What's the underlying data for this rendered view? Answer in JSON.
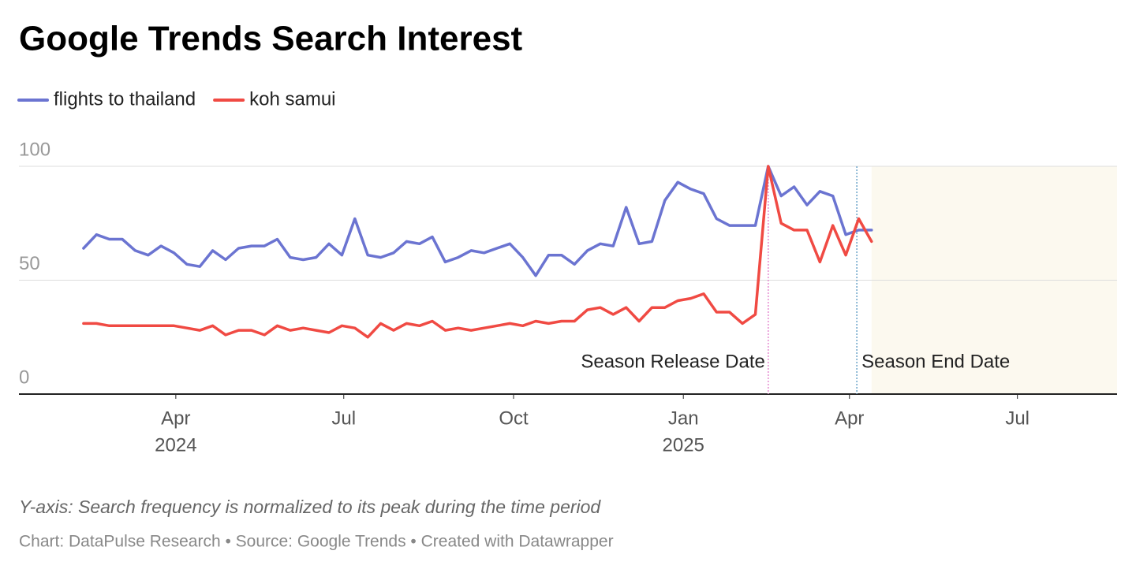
{
  "chart_data": {
    "type": "line",
    "title": "Google Trends Search Interest",
    "x": [
      "2024-02-11",
      "2024-02-18",
      "2024-02-25",
      "2024-03-03",
      "2024-03-10",
      "2024-03-17",
      "2024-03-24",
      "2024-03-31",
      "2024-04-07",
      "2024-04-14",
      "2024-04-21",
      "2024-04-28",
      "2024-05-05",
      "2024-05-12",
      "2024-05-19",
      "2024-05-26",
      "2024-06-02",
      "2024-06-09",
      "2024-06-16",
      "2024-06-23",
      "2024-06-30",
      "2024-07-07",
      "2024-07-14",
      "2024-07-21",
      "2024-07-28",
      "2024-08-04",
      "2024-08-11",
      "2024-08-18",
      "2024-08-25",
      "2024-09-01",
      "2024-09-08",
      "2024-09-15",
      "2024-09-22",
      "2024-09-29",
      "2024-10-06",
      "2024-10-13",
      "2024-10-20",
      "2024-10-27",
      "2024-11-03",
      "2024-11-10",
      "2024-11-17",
      "2024-11-24",
      "2024-12-01",
      "2024-12-08",
      "2024-12-15",
      "2024-12-22",
      "2024-12-29",
      "2025-01-05",
      "2025-01-12",
      "2025-01-19",
      "2025-01-26",
      "2025-02-02",
      "2025-02-09",
      "2025-02-16",
      "2025-02-23",
      "2025-03-02",
      "2025-03-09",
      "2025-03-16",
      "2025-03-23",
      "2025-03-30",
      "2025-04-06",
      "2025-04-13"
    ],
    "series": [
      {
        "name": "flights to thailand",
        "color": "#6b74d1",
        "values": [
          64,
          70,
          68,
          68,
          63,
          61,
          65,
          62,
          57,
          56,
          63,
          59,
          64,
          65,
          65,
          68,
          60,
          59,
          60,
          66,
          61,
          77,
          61,
          60,
          62,
          67,
          66,
          69,
          58,
          60,
          63,
          62,
          64,
          66,
          60,
          52,
          61,
          61,
          57,
          63,
          66,
          65,
          82,
          66,
          67,
          85,
          93,
          90,
          88,
          77,
          74,
          74,
          74,
          100,
          87,
          91,
          83,
          89,
          87,
          70,
          72,
          72
        ]
      },
      {
        "name": "koh samui",
        "color": "#f04a43",
        "values": [
          31,
          31,
          30,
          30,
          30,
          30,
          30,
          30,
          29,
          28,
          30,
          26,
          28,
          28,
          26,
          30,
          28,
          29,
          28,
          27,
          30,
          29,
          25,
          31,
          28,
          31,
          30,
          32,
          28,
          29,
          28,
          29,
          30,
          31,
          30,
          32,
          31,
          32,
          32,
          37,
          38,
          35,
          38,
          32,
          38,
          38,
          41,
          42,
          44,
          36,
          36,
          31,
          35,
          100,
          75,
          72,
          72,
          58,
          74,
          61,
          77,
          67
        ]
      }
    ],
    "xlim": [
      "2024-01-07",
      "2025-08-24"
    ],
    "xticks": [
      {
        "value": "2024-04-01",
        "label": "Apr",
        "year": "2024"
      },
      {
        "value": "2024-07-01",
        "label": "Jul"
      },
      {
        "value": "2024-10-01",
        "label": "Oct"
      },
      {
        "value": "2025-01-01",
        "label": "Jan",
        "year": "2025"
      },
      {
        "value": "2025-04-01",
        "label": "Apr"
      },
      {
        "value": "2025-07-01",
        "label": "Jul"
      }
    ],
    "ylim": [
      0,
      100
    ],
    "yticks": [
      0,
      50,
      100
    ],
    "grid": true,
    "annotations": [
      {
        "x": "2025-02-16",
        "text": "Season Release Date",
        "color": "#e58ad0"
      },
      {
        "x": "2025-04-05",
        "text": "Season End Date",
        "color": "#6aa2c8"
      }
    ],
    "highlight": {
      "start": "2025-04-13",
      "end": "2025-08-24",
      "color": "#fcf9ef"
    },
    "note": "Y-axis: Search frequency is normalized to its peak during the time period",
    "source": "Chart: DataPulse Research • Source: Google Trends • Created with Datawrapper"
  }
}
